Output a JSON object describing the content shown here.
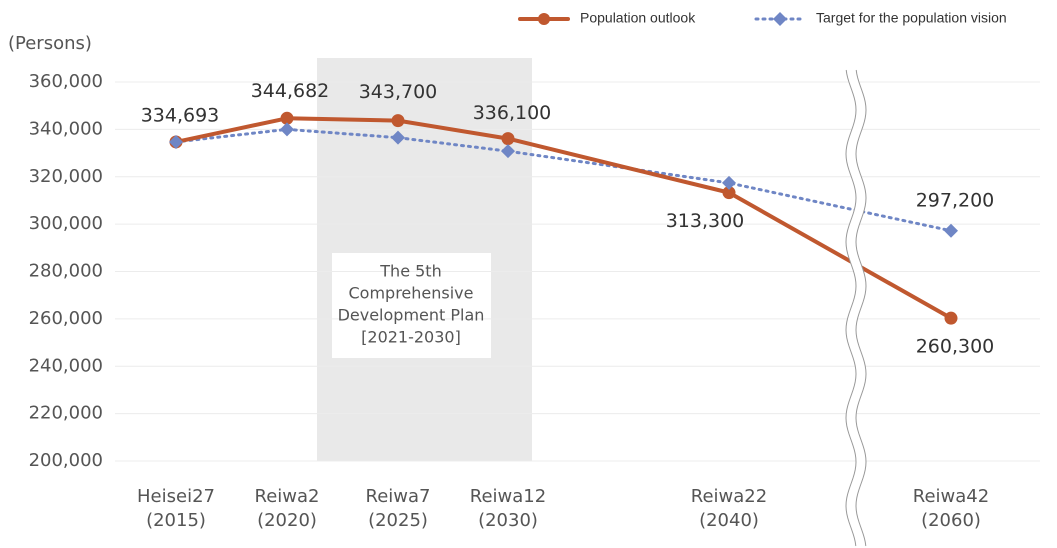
{
  "chart_data": {
    "type": "line",
    "y_axis_label": "(Persons)",
    "categories": [
      [
        "Heisei27",
        "(2015)"
      ],
      [
        "Reiwa2",
        "(2020)"
      ],
      [
        "Reiwa7",
        "(2025)"
      ],
      [
        "Reiwa12",
        "(2030)"
      ],
      [
        "Reiwa22",
        "(2040)"
      ],
      [
        "Reiwa42",
        "(2060)"
      ]
    ],
    "series": [
      {
        "name": "Population outlook",
        "color": "#c0582f",
        "marker": "circle",
        "values": [
          334693,
          344682,
          343700,
          336100,
          313300,
          260300
        ],
        "value_labels": [
          "334,693",
          "344,682",
          "343,700",
          "336,100",
          "313,300",
          "260,300"
        ]
      },
      {
        "name": "Target for the population vision",
        "color": "#6f86c5",
        "marker": "diamond",
        "dashed": true,
        "values": [
          334693,
          340000,
          336500,
          330800,
          317400,
          297200
        ],
        "value_labels": [
          null,
          null,
          null,
          null,
          null,
          "297,200"
        ]
      }
    ],
    "ylim": [
      200000,
      360000
    ],
    "yticks": [
      {
        "value": 200000,
        "label": "200,000"
      },
      {
        "value": 220000,
        "label": "220,000"
      },
      {
        "value": 240000,
        "label": "240,000"
      },
      {
        "value": 260000,
        "label": "260,000"
      },
      {
        "value": 280000,
        "label": "280,000"
      },
      {
        "value": 300000,
        "label": "300,000"
      },
      {
        "value": 320000,
        "label": "320,000"
      },
      {
        "value": 340000,
        "label": "340,000"
      },
      {
        "value": 360000,
        "label": "360,000"
      }
    ],
    "grid": true,
    "legend": "top-right",
    "annotation": [
      "The 5th",
      "Comprehensive",
      "Development Plan",
      "[2021-2030]"
    ]
  }
}
